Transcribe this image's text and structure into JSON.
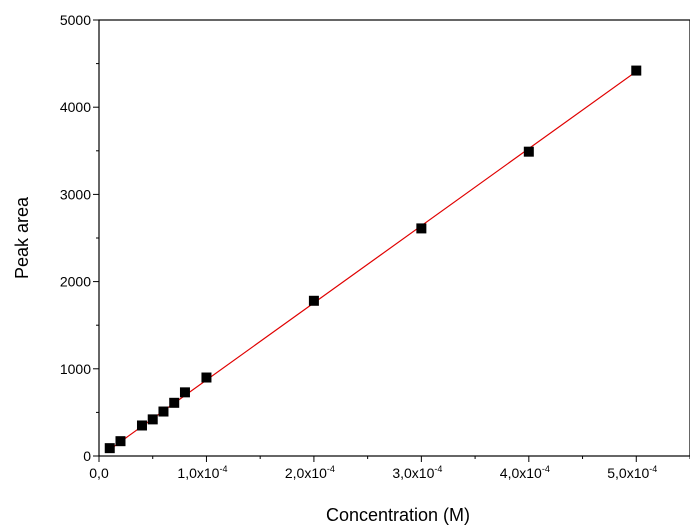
{
  "chart_data": {
    "type": "scatter",
    "title": "",
    "xlabel": "Concentration (M)",
    "ylabel": "Peak area",
    "xlim": [
      0,
      0.00055
    ],
    "ylim": [
      0,
      5000
    ],
    "x_ticks": [
      {
        "value": 0,
        "label": "0,0",
        "exp": ""
      },
      {
        "value": 0.0001,
        "label": "1,0x10",
        "exp": "-4"
      },
      {
        "value": 0.0002,
        "label": "2,0x10",
        "exp": "-4"
      },
      {
        "value": 0.0003,
        "label": "3,0x10",
        "exp": "-4"
      },
      {
        "value": 0.0004,
        "label": "4,0x10",
        "exp": "-4"
      },
      {
        "value": 0.0005,
        "label": "5,0x10",
        "exp": "-4"
      }
    ],
    "y_ticks": [
      {
        "value": 0,
        "label": "0"
      },
      {
        "value": 1000,
        "label": "1000"
      },
      {
        "value": 2000,
        "label": "2000"
      },
      {
        "value": 3000,
        "label": "3000"
      },
      {
        "value": 4000,
        "label": "4000"
      },
      {
        "value": 5000,
        "label": "5000"
      }
    ],
    "series": [
      {
        "marker": "square",
        "color": "#000000",
        "x": [
          1e-05,
          2e-05,
          4e-05,
          5e-05,
          6e-05,
          7e-05,
          8e-05,
          0.0001,
          0.0002,
          0.0003,
          0.0004,
          0.0005
        ],
        "y": [
          90,
          170,
          350,
          420,
          510,
          610,
          730,
          900,
          1780,
          2610,
          3490,
          4420
        ]
      }
    ],
    "fit_line": {
      "color": "#e00000",
      "x": [
        1e-05,
        0.0005
      ],
      "y": [
        75,
        4410
      ]
    },
    "grid": false,
    "legend": "none"
  }
}
